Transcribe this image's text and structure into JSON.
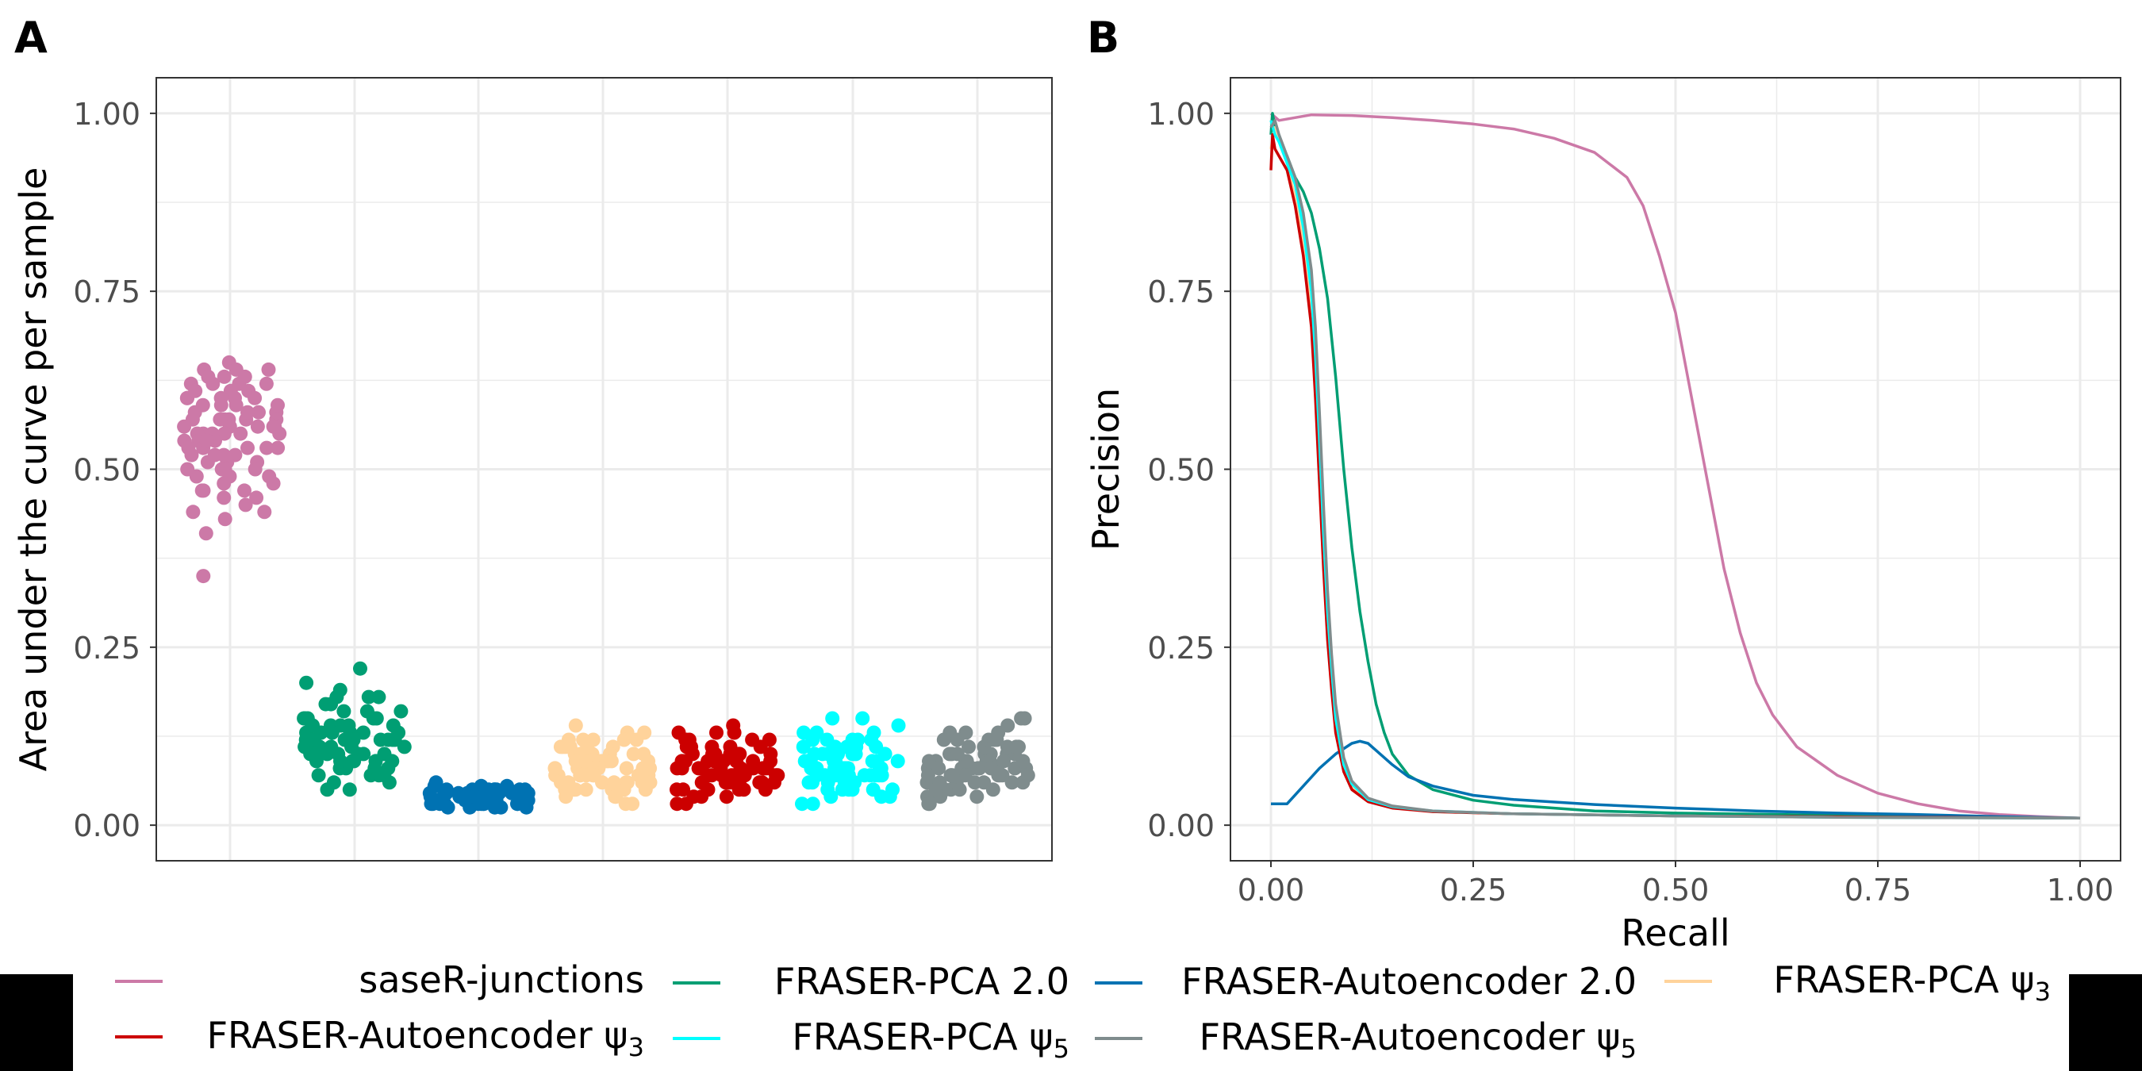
{
  "colors": {
    "saseR-junctions": "#CC79A7",
    "FRASER-PCA 2.0": "#009E73",
    "FRASER-Autoencoder 2.0": "#0072B2",
    "FRASER-PCA psi3": "#FFD39B",
    "FRASER-Autoencoder psi3": "#CC0000",
    "FRASER-PCA psi5": "#00FFFF",
    "FRASER-Autoencoder psi5": "#7F8C8D",
    "grid": "#EBEBEB",
    "panel_border": "#333333",
    "tick_text": "#4D4D4D"
  },
  "legend": {
    "entries": [
      {
        "key": "saseR-junctions",
        "label": "saseR-junctions",
        "sub": ""
      },
      {
        "key": "FRASER-PCA 2.0",
        "label": "FRASER-PCA 2.0",
        "sub": ""
      },
      {
        "key": "FRASER-Autoencoder 2.0",
        "label": "FRASER-Autoencoder 2.0",
        "sub": ""
      },
      {
        "key": "FRASER-PCA psi3",
        "label": "FRASER-PCA ψ",
        "sub": "3"
      },
      {
        "key": "FRASER-Autoencoder psi3",
        "label": "FRASER-Autoencoder ψ",
        "sub": "3"
      },
      {
        "key": "FRASER-PCA psi5",
        "label": "FRASER-PCA ψ",
        "sub": "5"
      },
      {
        "key": "FRASER-Autoencoder psi5",
        "label": "FRASER-Autoencoder ψ",
        "sub": "5"
      }
    ]
  },
  "chart_data": [
    {
      "panel": "A",
      "type": "scatter",
      "ylabel": "Area under the curve per sample",
      "xlabel": "",
      "ylim": [
        -0.05,
        1.05
      ],
      "yticks": [
        0.0,
        0.25,
        0.5,
        0.75,
        1.0
      ],
      "ytick_labels": [
        "0.00",
        "0.25",
        "0.50",
        "0.75",
        "1.00"
      ],
      "grid": true,
      "categories": [
        "saseR-junctions",
        "FRASER-PCA 2.0",
        "FRASER-Autoencoder 2.0",
        "FRASER-PCA psi3",
        "FRASER-Autoencoder psi3",
        "FRASER-PCA psi5",
        "FRASER-Autoencoder psi5"
      ],
      "series": [
        {
          "key": "saseR-junctions",
          "values": [
            0.65,
            0.64,
            0.62,
            0.64,
            0.63,
            0.61,
            0.6,
            0.64,
            0.62,
            0.6,
            0.63,
            0.58,
            0.57,
            0.6,
            0.56,
            0.55,
            0.58,
            0.61,
            0.59,
            0.57,
            0.55,
            0.54,
            0.56,
            0.53,
            0.52,
            0.55,
            0.57,
            0.54,
            0.5,
            0.52,
            0.53,
            0.51,
            0.49,
            0.55,
            0.57,
            0.59,
            0.6,
            0.62,
            0.58,
            0.56,
            0.54,
            0.52,
            0.5,
            0.48,
            0.47,
            0.49,
            0.51,
            0.53,
            0.55,
            0.57,
            0.46,
            0.45,
            0.44,
            0.47,
            0.5,
            0.53,
            0.56,
            0.59,
            0.61,
            0.63,
            0.58,
            0.55,
            0.52,
            0.49,
            0.48,
            0.44,
            0.43,
            0.46,
            0.41,
            0.35,
            0.6,
            0.57,
            0.54,
            0.51,
            0.62,
            0.59,
            0.56,
            0.53,
            0.5,
            0.47
          ]
        },
        {
          "key": "FRASER-PCA 2.0",
          "values": [
            0.22,
            0.2,
            0.18,
            0.19,
            0.17,
            0.16,
            0.15,
            0.18,
            0.17,
            0.16,
            0.15,
            0.14,
            0.13,
            0.14,
            0.12,
            0.11,
            0.13,
            0.12,
            0.1,
            0.11,
            0.09,
            0.1,
            0.12,
            0.14,
            0.13,
            0.11,
            0.09,
            0.08,
            0.07,
            0.09,
            0.1,
            0.12,
            0.13,
            0.15,
            0.14,
            0.12,
            0.1,
            0.08,
            0.06,
            0.07,
            0.09,
            0.11,
            0.13,
            0.12,
            0.1,
            0.08,
            0.05,
            0.06,
            0.07,
            0.11,
            0.13,
            0.15,
            0.16,
            0.14,
            0.12,
            0.1,
            0.09,
            0.08,
            0.11,
            0.12,
            0.05,
            0.07,
            0.1,
            0.13,
            0.15,
            0.18,
            0.11,
            0.09,
            0.12,
            0.14
          ]
        },
        {
          "key": "FRASER-Autoencoder 2.0",
          "values": [
            0.06,
            0.055,
            0.05,
            0.045,
            0.04,
            0.05,
            0.035,
            0.04,
            0.045,
            0.05,
            0.055,
            0.04,
            0.03,
            0.035,
            0.025,
            0.03,
            0.04,
            0.05,
            0.045,
            0.035,
            0.03,
            0.025,
            0.035,
            0.045,
            0.05,
            0.04,
            0.03,
            0.035,
            0.04,
            0.045,
            0.05,
            0.035,
            0.025,
            0.03,
            0.04,
            0.045,
            0.05,
            0.055,
            0.04,
            0.035,
            0.03,
            0.025,
            0.03,
            0.035,
            0.04,
            0.045,
            0.05,
            0.04,
            0.035,
            0.03,
            0.025,
            0.03,
            0.04,
            0.045,
            0.05,
            0.035,
            0.03,
            0.04,
            0.045,
            0.05
          ]
        },
        {
          "key": "FRASER-PCA psi3",
          "values": [
            0.14,
            0.13,
            0.12,
            0.13,
            0.11,
            0.1,
            0.12,
            0.11,
            0.1,
            0.09,
            0.08,
            0.1,
            0.11,
            0.12,
            0.09,
            0.08,
            0.07,
            0.09,
            0.1,
            0.08,
            0.07,
            0.06,
            0.08,
            0.09,
            0.1,
            0.11,
            0.12,
            0.1,
            0.08,
            0.07,
            0.05,
            0.06,
            0.07,
            0.08,
            0.09,
            0.1,
            0.11,
            0.09,
            0.08,
            0.06,
            0.05,
            0.04,
            0.06,
            0.07,
            0.08,
            0.09,
            0.1,
            0.07,
            0.06,
            0.05,
            0.04,
            0.03,
            0.05,
            0.06,
            0.07,
            0.08,
            0.09,
            0.06,
            0.05,
            0.04,
            0.03,
            0.05,
            0.07,
            0.09,
            0.11,
            0.12,
            0.08,
            0.06,
            0.05,
            0.07
          ]
        },
        {
          "key": "FRASER-Autoencoder psi3",
          "values": [
            0.14,
            0.13,
            0.12,
            0.13,
            0.11,
            0.12,
            0.1,
            0.11,
            0.1,
            0.09,
            0.12,
            0.11,
            0.1,
            0.09,
            0.08,
            0.1,
            0.09,
            0.08,
            0.07,
            0.09,
            0.08,
            0.07,
            0.06,
            0.08,
            0.09,
            0.1,
            0.11,
            0.07,
            0.06,
            0.05,
            0.07,
            0.08,
            0.09,
            0.1,
            0.06,
            0.05,
            0.04,
            0.06,
            0.07,
            0.08,
            0.09,
            0.05,
            0.04,
            0.03,
            0.05,
            0.06,
            0.07,
            0.08,
            0.1,
            0.11,
            0.12,
            0.09,
            0.08,
            0.07,
            0.06,
            0.05,
            0.04,
            0.03,
            0.06,
            0.07,
            0.08,
            0.09,
            0.1,
            0.12,
            0.13,
            0.07,
            0.06,
            0.05,
            0.08,
            0.09
          ]
        },
        {
          "key": "FRASER-PCA psi5",
          "values": [
            0.15,
            0.14,
            0.15,
            0.13,
            0.12,
            0.13,
            0.11,
            0.12,
            0.1,
            0.11,
            0.09,
            0.1,
            0.12,
            0.11,
            0.1,
            0.09,
            0.08,
            0.1,
            0.09,
            0.08,
            0.07,
            0.09,
            0.08,
            0.07,
            0.06,
            0.08,
            0.09,
            0.1,
            0.07,
            0.06,
            0.05,
            0.07,
            0.08,
            0.09,
            0.06,
            0.05,
            0.04,
            0.06,
            0.07,
            0.08,
            0.05,
            0.04,
            0.03,
            0.05,
            0.06,
            0.07,
            0.08,
            0.09,
            0.1,
            0.11,
            0.12,
            0.08,
            0.07,
            0.06,
            0.05,
            0.04,
            0.03,
            0.06,
            0.07,
            0.08,
            0.09,
            0.1,
            0.11,
            0.12,
            0.13,
            0.07,
            0.06,
            0.05,
            0.08,
            0.09
          ]
        },
        {
          "key": "FRASER-Autoencoder psi5",
          "values": [
            0.15,
            0.14,
            0.15,
            0.13,
            0.12,
            0.13,
            0.11,
            0.12,
            0.1,
            0.11,
            0.09,
            0.1,
            0.12,
            0.11,
            0.1,
            0.09,
            0.08,
            0.1,
            0.09,
            0.08,
            0.07,
            0.09,
            0.08,
            0.07,
            0.06,
            0.08,
            0.09,
            0.1,
            0.07,
            0.06,
            0.05,
            0.07,
            0.08,
            0.09,
            0.06,
            0.05,
            0.04,
            0.06,
            0.07,
            0.08,
            0.05,
            0.04,
            0.03,
            0.05,
            0.06,
            0.07,
            0.08,
            0.09,
            0.1,
            0.11,
            0.12,
            0.08,
            0.07,
            0.06,
            0.05,
            0.04,
            0.03,
            0.06,
            0.07,
            0.08,
            0.09,
            0.1,
            0.11,
            0.12,
            0.13,
            0.07,
            0.06,
            0.05,
            0.08,
            0.09
          ]
        }
      ]
    },
    {
      "panel": "B",
      "type": "line",
      "xlabel": "Recall",
      "ylabel": "Precision",
      "xlim": [
        -0.05,
        1.05
      ],
      "ylim": [
        -0.05,
        1.05
      ],
      "xticks": [
        0.0,
        0.25,
        0.5,
        0.75,
        1.0
      ],
      "xtick_labels": [
        "0.00",
        "0.25",
        "0.50",
        "0.75",
        "1.00"
      ],
      "yticks": [
        0.0,
        0.25,
        0.5,
        0.75,
        1.0
      ],
      "ytick_labels": [
        "0.00",
        "0.25",
        "0.50",
        "0.75",
        "1.00"
      ],
      "grid": true,
      "series": [
        {
          "key": "saseR-junctions",
          "x": [
            0,
            0.01,
            0.05,
            0.1,
            0.15,
            0.2,
            0.25,
            0.3,
            0.35,
            0.4,
            0.44,
            0.46,
            0.48,
            0.5,
            0.52,
            0.54,
            0.56,
            0.58,
            0.6,
            0.62,
            0.65,
            0.7,
            0.75,
            0.8,
            0.85,
            0.9,
            0.95,
            1.0
          ],
          "y": [
            1.0,
            0.99,
            0.998,
            0.997,
            0.994,
            0.99,
            0.985,
            0.978,
            0.965,
            0.945,
            0.91,
            0.87,
            0.8,
            0.72,
            0.6,
            0.48,
            0.36,
            0.27,
            0.2,
            0.155,
            0.11,
            0.07,
            0.045,
            0.03,
            0.02,
            0.015,
            0.012,
            0.01
          ]
        },
        {
          "key": "FRASER-PCA 2.0",
          "x": [
            0,
            0.002,
            0.005,
            0.01,
            0.02,
            0.03,
            0.04,
            0.05,
            0.06,
            0.07,
            0.08,
            0.09,
            0.1,
            0.11,
            0.12,
            0.13,
            0.14,
            0.15,
            0.17,
            0.2,
            0.25,
            0.3,
            0.4,
            0.5,
            0.7,
            1.0
          ],
          "y": [
            0.97,
            1.0,
            0.98,
            0.96,
            0.94,
            0.91,
            0.89,
            0.86,
            0.81,
            0.74,
            0.63,
            0.5,
            0.39,
            0.3,
            0.23,
            0.17,
            0.13,
            0.1,
            0.07,
            0.05,
            0.035,
            0.028,
            0.02,
            0.017,
            0.014,
            0.01
          ]
        },
        {
          "key": "FRASER-Autoencoder 2.0",
          "x": [
            0,
            0.02,
            0.04,
            0.06,
            0.08,
            0.1,
            0.11,
            0.12,
            0.13,
            0.15,
            0.17,
            0.2,
            0.25,
            0.3,
            0.4,
            0.5,
            0.6,
            0.7,
            0.8,
            0.9,
            1.0
          ],
          "y": [
            0.03,
            0.03,
            0.055,
            0.08,
            0.1,
            0.115,
            0.118,
            0.115,
            0.105,
            0.085,
            0.068,
            0.055,
            0.042,
            0.036,
            0.029,
            0.024,
            0.02,
            0.017,
            0.015,
            0.012,
            0.01
          ]
        },
        {
          "key": "FRASER-PCA psi3",
          "x": [
            0,
            0.005,
            0.01,
            0.02,
            0.03,
            0.04,
            0.05,
            0.055,
            0.06,
            0.065,
            0.07,
            0.075,
            0.08,
            0.09,
            0.1,
            0.12,
            0.15,
            0.2,
            0.3,
            0.5,
            0.7,
            1.0
          ],
          "y": [
            0.95,
            0.98,
            0.96,
            0.93,
            0.88,
            0.82,
            0.72,
            0.62,
            0.5,
            0.38,
            0.27,
            0.2,
            0.14,
            0.08,
            0.055,
            0.035,
            0.025,
            0.019,
            0.016,
            0.013,
            0.011,
            0.01
          ]
        },
        {
          "key": "FRASER-Autoencoder psi3",
          "x": [
            0,
            0.002,
            0.005,
            0.01,
            0.02,
            0.03,
            0.04,
            0.05,
            0.055,
            0.06,
            0.065,
            0.07,
            0.075,
            0.08,
            0.09,
            0.1,
            0.12,
            0.15,
            0.2,
            0.3,
            0.5,
            1.0
          ],
          "y": [
            0.92,
            0.97,
            0.95,
            0.94,
            0.92,
            0.87,
            0.8,
            0.7,
            0.6,
            0.48,
            0.36,
            0.26,
            0.19,
            0.13,
            0.075,
            0.05,
            0.033,
            0.024,
            0.019,
            0.016,
            0.013,
            0.01
          ]
        },
        {
          "key": "FRASER-PCA psi5",
          "x": [
            0,
            0.005,
            0.01,
            0.02,
            0.03,
            0.04,
            0.05,
            0.055,
            0.06,
            0.065,
            0.07,
            0.075,
            0.08,
            0.09,
            0.1,
            0.12,
            0.15,
            0.2,
            0.3,
            0.5,
            0.7,
            1.0
          ],
          "y": [
            0.99,
            0.97,
            0.96,
            0.93,
            0.9,
            0.84,
            0.75,
            0.66,
            0.54,
            0.41,
            0.3,
            0.22,
            0.15,
            0.085,
            0.058,
            0.036,
            0.026,
            0.02,
            0.016,
            0.013,
            0.011,
            0.01
          ]
        },
        {
          "key": "FRASER-Autoencoder psi5",
          "x": [
            0,
            0.005,
            0.01,
            0.02,
            0.03,
            0.04,
            0.05,
            0.055,
            0.06,
            0.065,
            0.07,
            0.075,
            0.08,
            0.09,
            0.1,
            0.12,
            0.15,
            0.2,
            0.3,
            0.5,
            0.7,
            1.0
          ],
          "y": [
            0.98,
            0.99,
            0.97,
            0.94,
            0.91,
            0.86,
            0.78,
            0.7,
            0.58,
            0.45,
            0.33,
            0.24,
            0.17,
            0.095,
            0.062,
            0.038,
            0.027,
            0.02,
            0.016,
            0.013,
            0.011,
            0.01
          ]
        }
      ]
    }
  ],
  "panel_labels": {
    "a": "A",
    "b": "B"
  }
}
